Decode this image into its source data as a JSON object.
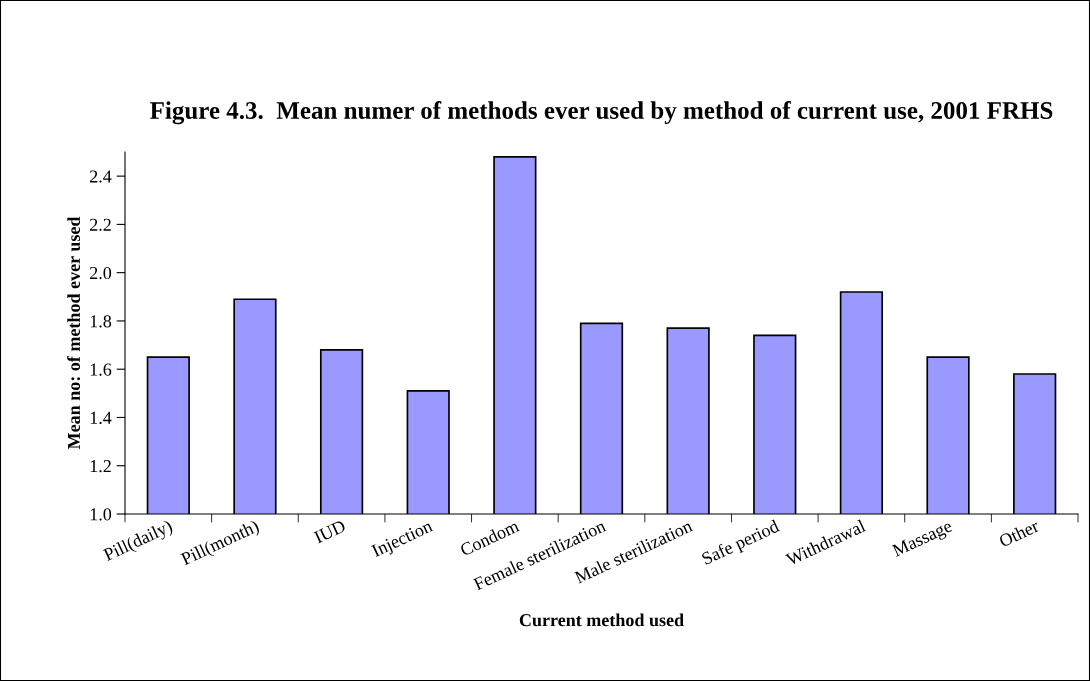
{
  "chart_data": {
    "type": "bar",
    "title": "Figure 4.3.  Mean numer of methods ever used by method of current use, 2001 FRHS",
    "xlabel": "Current method used",
    "ylabel": "Mean no: of method ever used",
    "categories": [
      "Pill(daily)",
      "Pill(month)",
      "IUD",
      "Injection",
      "Condom",
      "Female sterilization",
      "Male sterilization",
      "Safe period",
      "Withdrawal",
      "Massage",
      "Other"
    ],
    "values": [
      1.65,
      1.89,
      1.68,
      1.51,
      2.48,
      1.79,
      1.77,
      1.74,
      1.92,
      1.65,
      1.58
    ],
    "color": "#9999ff",
    "ylim": [
      1.0,
      2.5
    ],
    "yticks": [
      {
        "value": 1.0,
        "label": "1.0"
      },
      {
        "value": 1.2,
        "label": "1.2"
      },
      {
        "value": 1.4,
        "label": "1.4"
      },
      {
        "value": 1.6,
        "label": "1.6"
      },
      {
        "value": 1.8,
        "label": "1.8"
      },
      {
        "value": 2.0,
        "label": "2.0"
      },
      {
        "value": 2.2,
        "label": "2.2"
      },
      {
        "value": 2.4,
        "label": "2.4"
      }
    ],
    "grid": false,
    "legend": false
  }
}
